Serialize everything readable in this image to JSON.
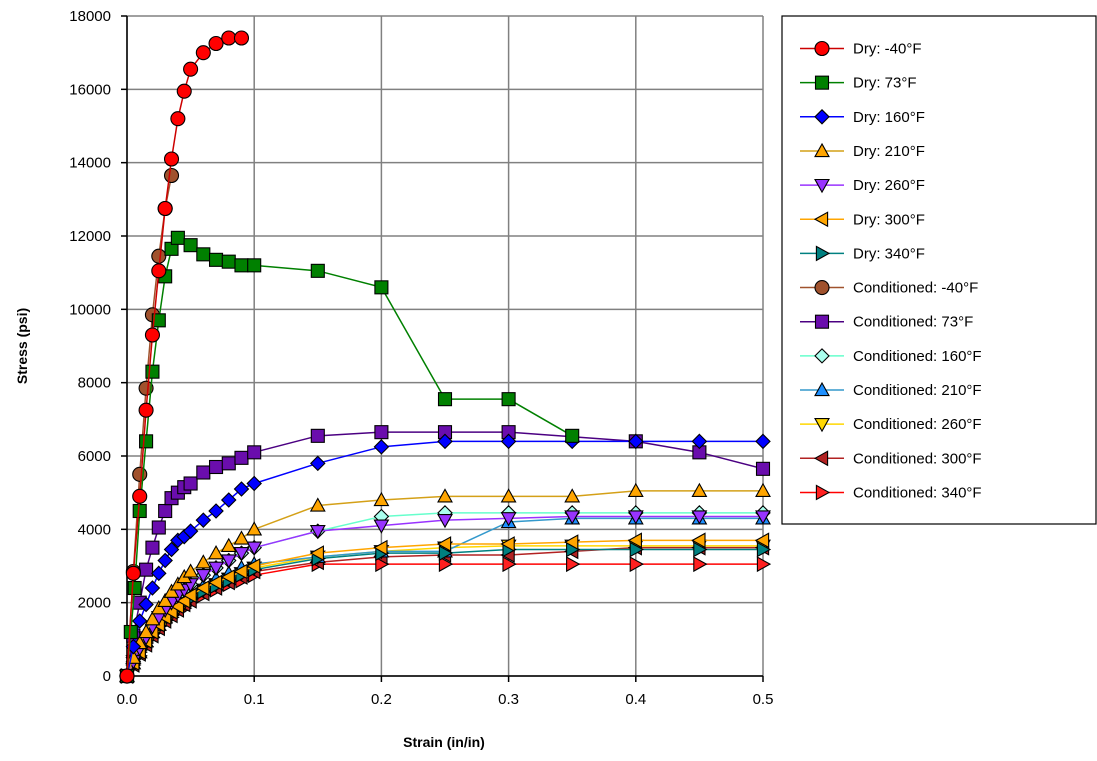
{
  "chart_data": {
    "type": "line",
    "title": "",
    "xlabel": "Strain (in/in)",
    "ylabel": "Stress (psi)",
    "xlim": [
      0,
      0.5
    ],
    "ylim": [
      0,
      18000
    ],
    "xticks": [
      "0.0",
      "0.1",
      "0.2",
      "0.3",
      "0.4",
      "0.5"
    ],
    "yticks": [
      "0",
      "2000",
      "4000",
      "6000",
      "8000",
      "10000",
      "12000",
      "14000",
      "16000",
      "18000"
    ],
    "grid": true,
    "legend_position": "right",
    "series": [
      {
        "name": "Dry: -40°F",
        "color": "#ff0000",
        "line_color": "#cc0000",
        "marker": "circle",
        "x": [
          0,
          0.005,
          0.01,
          0.015,
          0.02,
          0.025,
          0.03,
          0.035,
          0.04,
          0.045,
          0.05,
          0.06,
          0.07,
          0.08,
          0.09
        ],
        "y": [
          0,
          2800,
          4900,
          7250,
          9300,
          11050,
          12750,
          14100,
          15200,
          15950,
          16550,
          17000,
          17250,
          17400,
          17400
        ]
      },
      {
        "name": "Dry: 73°F",
        "color": "#008000",
        "line_color": "#008000",
        "marker": "square",
        "x": [
          0,
          0.003,
          0.006,
          0.01,
          0.015,
          0.02,
          0.025,
          0.03,
          0.035,
          0.04,
          0.05,
          0.06,
          0.07,
          0.08,
          0.09,
          0.1,
          0.15,
          0.2,
          0.25,
          0.3,
          0.35
        ],
        "y": [
          0,
          1200,
          2400,
          4500,
          6400,
          8300,
          9700,
          10900,
          11650,
          11950,
          11750,
          11500,
          11350,
          11300,
          11200,
          11200,
          11050,
          10600,
          7550,
          7550,
          6550
        ]
      },
      {
        "name": "Dry: 160°F",
        "color": "#0000ff",
        "line_color": "#0000ff",
        "marker": "diamond",
        "x": [
          0,
          0.005,
          0.01,
          0.015,
          0.02,
          0.025,
          0.03,
          0.035,
          0.04,
          0.045,
          0.05,
          0.06,
          0.07,
          0.08,
          0.09,
          0.1,
          0.15,
          0.2,
          0.25,
          0.3,
          0.35,
          0.4,
          0.45,
          0.5
        ],
        "y": [
          0,
          800,
          1500,
          1950,
          2400,
          2800,
          3150,
          3450,
          3700,
          3800,
          3950,
          4250,
          4500,
          4800,
          5100,
          5250,
          5800,
          6250,
          6400,
          6400,
          6400,
          6400,
          6400,
          6400
        ]
      },
      {
        "name": "Dry: 210°F",
        "color": "#ffa500",
        "line_color": "#d4a017",
        "marker": "triangle-up",
        "x": [
          0,
          0.005,
          0.01,
          0.015,
          0.02,
          0.025,
          0.03,
          0.035,
          0.04,
          0.045,
          0.05,
          0.06,
          0.07,
          0.08,
          0.09,
          0.1,
          0.15,
          0.2,
          0.25,
          0.3,
          0.35,
          0.4,
          0.45,
          0.5
        ],
        "y": [
          0,
          500,
          900,
          1200,
          1550,
          1850,
          2050,
          2300,
          2500,
          2700,
          2850,
          3100,
          3350,
          3550,
          3750,
          4000,
          4650,
          4800,
          4900,
          4900,
          4900,
          5050,
          5050,
          5050
        ]
      },
      {
        "name": "Dry: 260°F",
        "color": "#9933ff",
        "line_color": "#9933ff",
        "marker": "triangle-down",
        "x": [
          0,
          0.005,
          0.01,
          0.015,
          0.02,
          0.025,
          0.03,
          0.035,
          0.04,
          0.045,
          0.05,
          0.06,
          0.07,
          0.08,
          0.09,
          0.1,
          0.15,
          0.2,
          0.25,
          0.3,
          0.35,
          0.4,
          0.45,
          0.5
        ],
        "y": [
          0,
          400,
          750,
          1050,
          1350,
          1600,
          1800,
          2000,
          2200,
          2350,
          2500,
          2750,
          2950,
          3150,
          3350,
          3500,
          3950,
          4100,
          4250,
          4300,
          4350,
          4350,
          4350,
          4350
        ]
      },
      {
        "name": "Dry: 300°F",
        "color": "#ffa500",
        "line_color": "#ffa500",
        "marker": "triangle-left",
        "x": [
          0,
          0.005,
          0.01,
          0.015,
          0.02,
          0.025,
          0.03,
          0.035,
          0.04,
          0.045,
          0.05,
          0.06,
          0.07,
          0.08,
          0.09,
          0.1,
          0.15,
          0.2,
          0.25,
          0.3,
          0.35,
          0.4,
          0.45,
          0.5
        ],
        "y": [
          0,
          350,
          650,
          950,
          1200,
          1400,
          1600,
          1750,
          1900,
          2050,
          2200,
          2400,
          2550,
          2700,
          2850,
          3000,
          3350,
          3500,
          3600,
          3600,
          3650,
          3700,
          3700,
          3700
        ]
      },
      {
        "name": "Dry: 340°F",
        "color": "#008080",
        "line_color": "#008080",
        "marker": "triangle-right",
        "x": [
          0,
          0.005,
          0.01,
          0.015,
          0.02,
          0.025,
          0.03,
          0.035,
          0.04,
          0.045,
          0.05,
          0.06,
          0.07,
          0.08,
          0.09,
          0.1,
          0.15,
          0.2,
          0.25,
          0.3,
          0.35,
          0.4,
          0.45,
          0.5
        ],
        "y": [
          0,
          350,
          650,
          900,
          1150,
          1350,
          1550,
          1700,
          1850,
          2000,
          2100,
          2300,
          2450,
          2600,
          2750,
          2900,
          3200,
          3350,
          3350,
          3450,
          3450,
          3450,
          3450,
          3450
        ]
      },
      {
        "name": "Conditioned: -40°F",
        "color": "#a0522d",
        "line_color": "#a0522d",
        "marker": "circle",
        "x": [
          0,
          0.005,
          0.01,
          0.015,
          0.02,
          0.025,
          0.03,
          0.035
        ],
        "y": [
          0,
          2850,
          5500,
          7850,
          9850,
          11450,
          12750,
          13650
        ]
      },
      {
        "name": "Conditioned: 73°F",
        "color": "#6a0dad",
        "line_color": "#4b0082",
        "marker": "square",
        "x": [
          0,
          0.005,
          0.01,
          0.015,
          0.02,
          0.025,
          0.03,
          0.035,
          0.04,
          0.045,
          0.05,
          0.06,
          0.07,
          0.08,
          0.09,
          0.1,
          0.15,
          0.2,
          0.25,
          0.3,
          0.4,
          0.45,
          0.5
        ],
        "y": [
          0,
          1100,
          2000,
          2900,
          3500,
          4050,
          4500,
          4850,
          5000,
          5150,
          5250,
          5550,
          5700,
          5800,
          5950,
          6100,
          6550,
          6650,
          6650,
          6650,
          6400,
          6100,
          5650
        ]
      },
      {
        "name": "Conditioned: 160°F",
        "color": "#aaffee",
        "line_color": "#66ffcc",
        "marker": "diamond",
        "x": [
          0,
          0.005,
          0.01,
          0.015,
          0.02,
          0.025,
          0.03,
          0.035,
          0.04,
          0.045,
          0.05,
          0.06,
          0.07,
          0.08,
          0.09,
          0.1,
          0.15,
          0.2,
          0.25,
          0.3,
          0.35,
          0.4,
          0.45,
          0.5
        ],
        "y": [
          0,
          400,
          750,
          1050,
          1350,
          1600,
          1800,
          2000,
          2200,
          2350,
          2500,
          2750,
          2950,
          3150,
          3350,
          3500,
          3950,
          4350,
          4450,
          4450,
          4450,
          4450,
          4450,
          4450
        ]
      },
      {
        "name": "Conditioned: 210°F",
        "color": "#1e90ff",
        "line_color": "#3399cc",
        "marker": "triangle-up",
        "x": [
          0,
          0.005,
          0.01,
          0.015,
          0.02,
          0.025,
          0.03,
          0.035,
          0.04,
          0.045,
          0.05,
          0.06,
          0.07,
          0.08,
          0.09,
          0.1,
          0.15,
          0.2,
          0.25,
          0.3,
          0.35,
          0.4,
          0.45,
          0.5
        ],
        "y": [
          0,
          350,
          650,
          950,
          1200,
          1400,
          1600,
          1800,
          1950,
          2100,
          2250,
          2450,
          2650,
          2800,
          2950,
          3050,
          3250,
          3400,
          3400,
          4200,
          4300,
          4300,
          4300,
          4300
        ]
      },
      {
        "name": "Conditioned: 260°F",
        "color": "#ffd700",
        "line_color": "#ffd700",
        "marker": "triangle-down",
        "x": [
          0,
          0.005,
          0.01,
          0.015,
          0.02,
          0.025,
          0.03,
          0.035,
          0.04,
          0.045,
          0.05,
          0.06,
          0.07,
          0.08,
          0.09,
          0.1,
          0.15,
          0.2,
          0.25,
          0.3,
          0.35,
          0.4,
          0.45,
          0.5
        ],
        "y": [
          0,
          350,
          650,
          900,
          1150,
          1350,
          1550,
          1700,
          1850,
          2000,
          2150,
          2350,
          2500,
          2650,
          2800,
          2950,
          3250,
          3400,
          3500,
          3550,
          3550,
          3550,
          3550,
          3550
        ]
      },
      {
        "name": "Conditioned: 300°F",
        "color": "#b22222",
        "line_color": "#b22222",
        "marker": "triangle-left",
        "x": [
          0,
          0.005,
          0.01,
          0.015,
          0.02,
          0.025,
          0.03,
          0.035,
          0.04,
          0.045,
          0.05,
          0.06,
          0.07,
          0.08,
          0.09,
          0.1,
          0.15,
          0.2,
          0.25,
          0.3,
          0.35,
          0.4,
          0.45,
          0.5
        ],
        "y": [
          0,
          300,
          600,
          850,
          1100,
          1300,
          1500,
          1650,
          1800,
          1950,
          2050,
          2250,
          2400,
          2550,
          2700,
          2850,
          3100,
          3250,
          3300,
          3300,
          3400,
          3500,
          3500,
          3500
        ]
      },
      {
        "name": "Conditioned: 340°F",
        "color": "#ff2020",
        "line_color": "#ff0000",
        "marker": "triangle-right",
        "x": [
          0,
          0.005,
          0.01,
          0.015,
          0.02,
          0.025,
          0.03,
          0.035,
          0.04,
          0.045,
          0.05,
          0.06,
          0.07,
          0.08,
          0.09,
          0.1,
          0.15,
          0.2,
          0.25,
          0.3,
          0.35,
          0.4,
          0.45,
          0.5
        ],
        "y": [
          0,
          300,
          550,
          800,
          1050,
          1250,
          1450,
          1600,
          1750,
          1850,
          2000,
          2200,
          2350,
          2500,
          2600,
          2750,
          3050,
          3050,
          3050,
          3050,
          3050,
          3050,
          3050,
          3050
        ]
      }
    ]
  }
}
